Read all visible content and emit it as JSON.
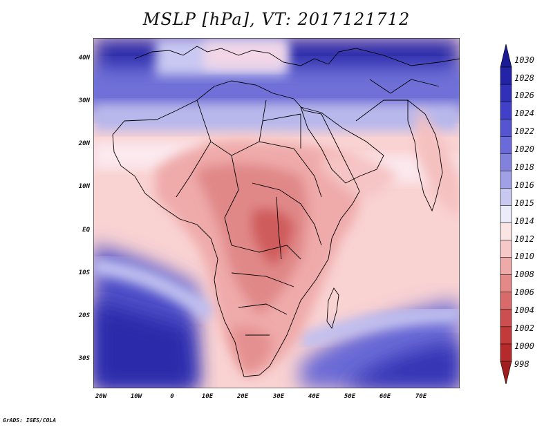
{
  "title": "MSLP [hPa], VT: 2017121712",
  "footer": "GrADS: IGES/COLA",
  "lat_labels": [
    "40N",
    "30N",
    "20N",
    "10N",
    "EQ",
    "10S",
    "20S",
    "30S"
  ],
  "lon_labels": [
    "20W",
    "10W",
    "0",
    "10E",
    "20E",
    "30E",
    "40E",
    "50E",
    "60E",
    "70E"
  ],
  "colorbar": {
    "levels": [
      "1030",
      "1028",
      "1026",
      "1024",
      "1022",
      "1020",
      "1018",
      "1016",
      "1015",
      "1014",
      "1012",
      "1010",
      "1008",
      "1006",
      "1004",
      "1002",
      "1000",
      "998"
    ],
    "colors": [
      "#1b1b96",
      "#2323a8",
      "#3030b8",
      "#4040c8",
      "#5555d2",
      "#6a6ad8",
      "#8282de",
      "#a0a0e6",
      "#c8c8f0",
      "#ebebfa",
      "#fbe4e4",
      "#f7c8c8",
      "#eea9a9",
      "#e48888",
      "#d86a6a",
      "#cc4e4e",
      "#c23a3a",
      "#b52a2a",
      "#a01e1e"
    ]
  },
  "colors": {
    "ocean_high": "#3a3ab8",
    "land_outline": "#000000"
  }
}
